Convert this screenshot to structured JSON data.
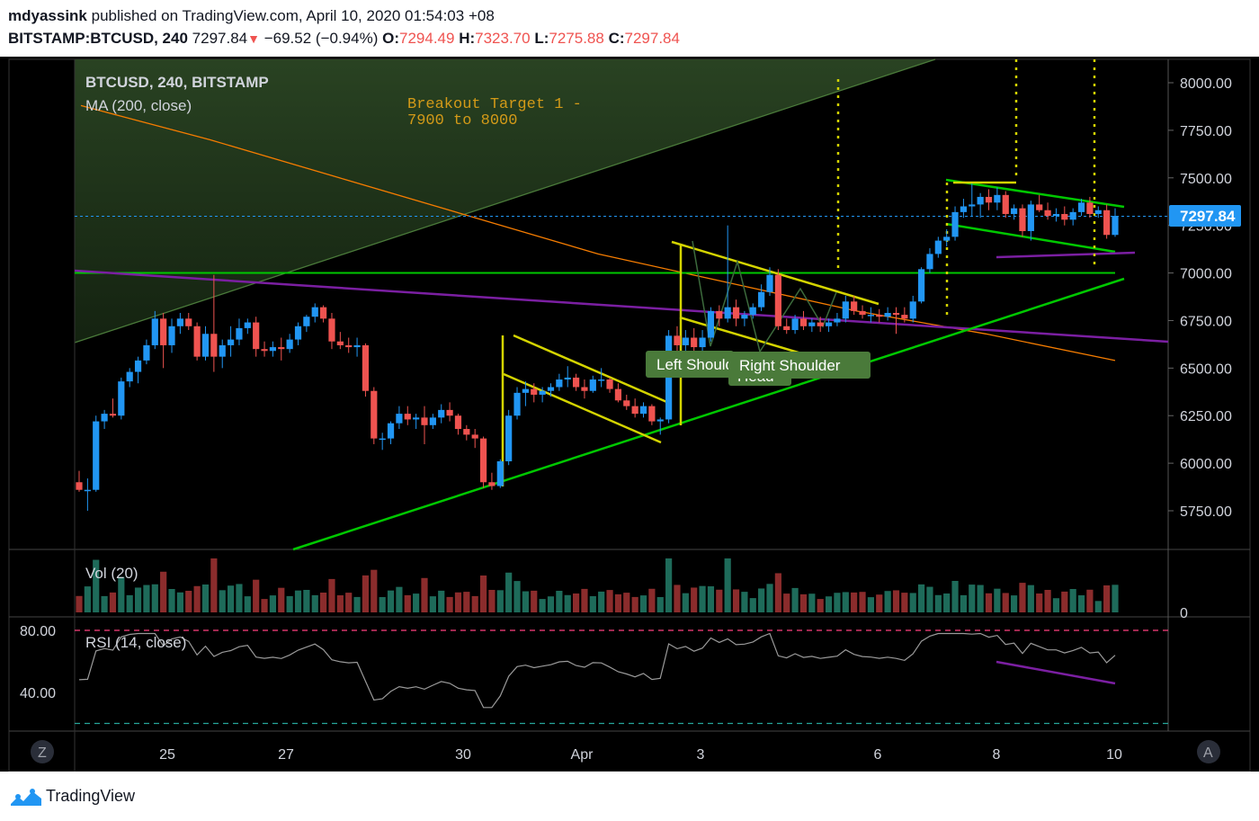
{
  "header": {
    "author": "mdyassink",
    "published_text": "published on TradingView.com, April 10, 2020 01:54:03 +08",
    "symbol": "BITSTAMP:BTCUSD, 240",
    "last": "7297.84",
    "change": "−69.52 (−0.94%)",
    "o_label": "O:",
    "o": "7294.49",
    "h_label": "H:",
    "h": "7323.70",
    "l_label": "L:",
    "l": "7275.88",
    "c_label": "C:",
    "c": "7297.84"
  },
  "legend": {
    "series": "BTCUSD, 240, BITSTAMP",
    "ma": "MA (200, close)",
    "vol": "Vol (20)",
    "rsi": "RSI (14, close)"
  },
  "annotations": {
    "target_line1": "Breakout Target 1 -",
    "target_line2": "7900 to 8000",
    "left_shoulder": "Left Shoulder",
    "right_shoulder": "Right Shoulder",
    "head": "Head"
  },
  "scale_buttons": {
    "z": "Z",
    "a": "A"
  },
  "brand": "TradingView",
  "colors": {
    "up": "#2196f3",
    "down": "#ef5350",
    "ma": "#f57c00",
    "green_line": "#00c800",
    "purple_line": "#7b1fa2",
    "yellow_line": "#d4d400",
    "target_text": "#d39a18",
    "price_tag": "#2196f3",
    "vol_up": "#1e6b5a",
    "vol_down": "#8b2c2c"
  },
  "chart_data": {
    "type": "candlestick",
    "symbol": "BTCUSD",
    "interval": "240",
    "exchange": "BITSTAMP",
    "ylim": [
      5500,
      8100
    ],
    "y_ticks": [
      "8000.00",
      "7750.00",
      "7500.00",
      "7250.00",
      "7000.00",
      "6750.00",
      "6500.00",
      "6250.00",
      "6000.00",
      "5750.00"
    ],
    "current_price": "7297.84",
    "x_ticks": [
      "25",
      "27",
      "30",
      "Apr",
      "3",
      "6",
      "8",
      "10"
    ],
    "candles": [
      {
        "o": 5900,
        "h": 5960,
        "l": 5850,
        "c": 5860
      },
      {
        "o": 5860,
        "h": 5920,
        "l": 5750,
        "c": 5860
      },
      {
        "o": 5860,
        "h": 6250,
        "l": 5850,
        "c": 6220
      },
      {
        "o": 6220,
        "h": 6280,
        "l": 6180,
        "c": 6260
      },
      {
        "o": 6260,
        "h": 6340,
        "l": 6240,
        "c": 6250
      },
      {
        "o": 6250,
        "h": 6450,
        "l": 6230,
        "c": 6430
      },
      {
        "o": 6430,
        "h": 6500,
        "l": 6400,
        "c": 6480
      },
      {
        "o": 6480,
        "h": 6560,
        "l": 6420,
        "c": 6540
      },
      {
        "o": 6540,
        "h": 6650,
        "l": 6520,
        "c": 6620
      },
      {
        "o": 6620,
        "h": 6800,
        "l": 6600,
        "c": 6760
      },
      {
        "o": 6760,
        "h": 6790,
        "l": 6500,
        "c": 6620
      },
      {
        "o": 6620,
        "h": 6760,
        "l": 6580,
        "c": 6720
      },
      {
        "o": 6720,
        "h": 6790,
        "l": 6680,
        "c": 6760
      },
      {
        "o": 6760,
        "h": 6790,
        "l": 6700,
        "c": 6720
      },
      {
        "o": 6720,
        "h": 6740,
        "l": 6540,
        "c": 6560
      },
      {
        "o": 6560,
        "h": 6720,
        "l": 6540,
        "c": 6680
      },
      {
        "o": 6680,
        "h": 6990,
        "l": 6480,
        "c": 6560
      },
      {
        "o": 6560,
        "h": 6650,
        "l": 6500,
        "c": 6620
      },
      {
        "o": 6620,
        "h": 6720,
        "l": 6560,
        "c": 6650
      },
      {
        "o": 6650,
        "h": 6760,
        "l": 6620,
        "c": 6710
      },
      {
        "o": 6710,
        "h": 6760,
        "l": 6680,
        "c": 6740
      },
      {
        "o": 6740,
        "h": 6770,
        "l": 6560,
        "c": 6600
      },
      {
        "o": 6600,
        "h": 6640,
        "l": 6560,
        "c": 6590
      },
      {
        "o": 6590,
        "h": 6640,
        "l": 6560,
        "c": 6610
      },
      {
        "o": 6610,
        "h": 6660,
        "l": 6540,
        "c": 6600
      },
      {
        "o": 6600,
        "h": 6680,
        "l": 6580,
        "c": 6650
      },
      {
        "o": 6650,
        "h": 6740,
        "l": 6620,
        "c": 6720
      },
      {
        "o": 6720,
        "h": 6780,
        "l": 6690,
        "c": 6770
      },
      {
        "o": 6770,
        "h": 6840,
        "l": 6740,
        "c": 6820
      },
      {
        "o": 6820,
        "h": 6830,
        "l": 6740,
        "c": 6760
      },
      {
        "o": 6760,
        "h": 6790,
        "l": 6600,
        "c": 6640
      },
      {
        "o": 6640,
        "h": 6690,
        "l": 6600,
        "c": 6620
      },
      {
        "o": 6620,
        "h": 6660,
        "l": 6580,
        "c": 6610
      },
      {
        "o": 6610,
        "h": 6660,
        "l": 6560,
        "c": 6620
      },
      {
        "o": 6620,
        "h": 6630,
        "l": 6350,
        "c": 6380
      },
      {
        "o": 6380,
        "h": 6400,
        "l": 6100,
        "c": 6130
      },
      {
        "o": 6130,
        "h": 6160,
        "l": 6070,
        "c": 6130
      },
      {
        "o": 6130,
        "h": 6220,
        "l": 6100,
        "c": 6210
      },
      {
        "o": 6210,
        "h": 6300,
        "l": 6180,
        "c": 6260
      },
      {
        "o": 6260,
        "h": 6300,
        "l": 6200,
        "c": 6230
      },
      {
        "o": 6230,
        "h": 6260,
        "l": 6180,
        "c": 6240
      },
      {
        "o": 6240,
        "h": 6300,
        "l": 6100,
        "c": 6200
      },
      {
        "o": 6200,
        "h": 6260,
        "l": 6180,
        "c": 6240
      },
      {
        "o": 6240,
        "h": 6310,
        "l": 6210,
        "c": 6280
      },
      {
        "o": 6280,
        "h": 6320,
        "l": 6220,
        "c": 6250
      },
      {
        "o": 6250,
        "h": 6260,
        "l": 6150,
        "c": 6180
      },
      {
        "o": 6180,
        "h": 6200,
        "l": 6120,
        "c": 6150
      },
      {
        "o": 6150,
        "h": 6180,
        "l": 6080,
        "c": 6130
      },
      {
        "o": 6130,
        "h": 6140,
        "l": 5870,
        "c": 5900
      },
      {
        "o": 5900,
        "h": 5950,
        "l": 5860,
        "c": 5880
      },
      {
        "o": 5880,
        "h": 6020,
        "l": 5870,
        "c": 6010
      },
      {
        "o": 6010,
        "h": 6280,
        "l": 5990,
        "c": 6250
      },
      {
        "o": 6250,
        "h": 6400,
        "l": 6230,
        "c": 6370
      },
      {
        "o": 6370,
        "h": 6430,
        "l": 6300,
        "c": 6390
      },
      {
        "o": 6390,
        "h": 6420,
        "l": 6320,
        "c": 6360
      },
      {
        "o": 6360,
        "h": 6400,
        "l": 6320,
        "c": 6380
      },
      {
        "o": 6380,
        "h": 6420,
        "l": 6350,
        "c": 6400
      },
      {
        "o": 6400,
        "h": 6470,
        "l": 6380,
        "c": 6440
      },
      {
        "o": 6440,
        "h": 6510,
        "l": 6400,
        "c": 6450
      },
      {
        "o": 6450,
        "h": 6470,
        "l": 6380,
        "c": 6400
      },
      {
        "o": 6400,
        "h": 6440,
        "l": 6340,
        "c": 6380
      },
      {
        "o": 6380,
        "h": 6460,
        "l": 6370,
        "c": 6440
      },
      {
        "o": 6440,
        "h": 6500,
        "l": 6400,
        "c": 6440
      },
      {
        "o": 6440,
        "h": 6450,
        "l": 6370,
        "c": 6390
      },
      {
        "o": 6390,
        "h": 6420,
        "l": 6320,
        "c": 6330
      },
      {
        "o": 6330,
        "h": 6360,
        "l": 6280,
        "c": 6300
      },
      {
        "o": 6300,
        "h": 6340,
        "l": 6240,
        "c": 6260
      },
      {
        "o": 6260,
        "h": 6320,
        "l": 6240,
        "c": 6300
      },
      {
        "o": 6300,
        "h": 6310,
        "l": 6200,
        "c": 6220
      },
      {
        "o": 6220,
        "h": 6240,
        "l": 6150,
        "c": 6230
      },
      {
        "o": 6230,
        "h": 6700,
        "l": 6210,
        "c": 6670
      },
      {
        "o": 6670,
        "h": 6720,
        "l": 6580,
        "c": 6620
      },
      {
        "o": 6620,
        "h": 6700,
        "l": 6580,
        "c": 6660
      },
      {
        "o": 6660,
        "h": 6710,
        "l": 6570,
        "c": 6610
      },
      {
        "o": 6610,
        "h": 6700,
        "l": 6580,
        "c": 6660
      },
      {
        "o": 6660,
        "h": 6820,
        "l": 6640,
        "c": 6800
      },
      {
        "o": 6800,
        "h": 6830,
        "l": 6720,
        "c": 6760
      },
      {
        "o": 6760,
        "h": 7250,
        "l": 6740,
        "c": 6820
      },
      {
        "o": 6820,
        "h": 6860,
        "l": 6720,
        "c": 6760
      },
      {
        "o": 6760,
        "h": 6800,
        "l": 6720,
        "c": 6780
      },
      {
        "o": 6780,
        "h": 6840,
        "l": 6760,
        "c": 6820
      },
      {
        "o": 6820,
        "h": 6940,
        "l": 6800,
        "c": 6900
      },
      {
        "o": 6900,
        "h": 7030,
        "l": 6880,
        "c": 6990
      },
      {
        "o": 6990,
        "h": 7020,
        "l": 6700,
        "c": 6720
      },
      {
        "o": 6720,
        "h": 6760,
        "l": 6680,
        "c": 6700
      },
      {
        "o": 6700,
        "h": 6780,
        "l": 6680,
        "c": 6760
      },
      {
        "o": 6760,
        "h": 6800,
        "l": 6700,
        "c": 6720
      },
      {
        "o": 6720,
        "h": 6760,
        "l": 6690,
        "c": 6740
      },
      {
        "o": 6740,
        "h": 6770,
        "l": 6690,
        "c": 6720
      },
      {
        "o": 6720,
        "h": 6760,
        "l": 6690,
        "c": 6740
      },
      {
        "o": 6740,
        "h": 6790,
        "l": 6720,
        "c": 6760
      },
      {
        "o": 6760,
        "h": 6880,
        "l": 6740,
        "c": 6850
      },
      {
        "o": 6850,
        "h": 6880,
        "l": 6780,
        "c": 6800
      },
      {
        "o": 6800,
        "h": 6830,
        "l": 6760,
        "c": 6780
      },
      {
        "o": 6780,
        "h": 6820,
        "l": 6740,
        "c": 6780
      },
      {
        "o": 6780,
        "h": 6810,
        "l": 6740,
        "c": 6770
      },
      {
        "o": 6770,
        "h": 6820,
        "l": 6750,
        "c": 6790
      },
      {
        "o": 6790,
        "h": 6820,
        "l": 6680,
        "c": 6780
      },
      {
        "o": 6780,
        "h": 6820,
        "l": 6740,
        "c": 6760
      },
      {
        "o": 6760,
        "h": 6880,
        "l": 6740,
        "c": 6850
      },
      {
        "o": 6850,
        "h": 7030,
        "l": 6840,
        "c": 7020
      },
      {
        "o": 7020,
        "h": 7130,
        "l": 7000,
        "c": 7100
      },
      {
        "o": 7100,
        "h": 7190,
        "l": 7080,
        "c": 7170
      },
      {
        "o": 7170,
        "h": 7230,
        "l": 7140,
        "c": 7190
      },
      {
        "o": 7190,
        "h": 7350,
        "l": 7170,
        "c": 7320
      },
      {
        "o": 7320,
        "h": 7390,
        "l": 7290,
        "c": 7350
      },
      {
        "o": 7350,
        "h": 7470,
        "l": 7300,
        "c": 7360
      },
      {
        "o": 7360,
        "h": 7420,
        "l": 7290,
        "c": 7400
      },
      {
        "o": 7400,
        "h": 7440,
        "l": 7330,
        "c": 7370
      },
      {
        "o": 7370,
        "h": 7450,
        "l": 7330,
        "c": 7410
      },
      {
        "o": 7410,
        "h": 7430,
        "l": 7290,
        "c": 7310
      },
      {
        "o": 7310,
        "h": 7360,
        "l": 7280,
        "c": 7340
      },
      {
        "o": 7340,
        "h": 7360,
        "l": 7190,
        "c": 7220
      },
      {
        "o": 7220,
        "h": 7380,
        "l": 7170,
        "c": 7360
      },
      {
        "o": 7360,
        "h": 7410,
        "l": 7320,
        "c": 7330
      },
      {
        "o": 7330,
        "h": 7370,
        "l": 7280,
        "c": 7300
      },
      {
        "o": 7300,
        "h": 7340,
        "l": 7270,
        "c": 7310
      },
      {
        "o": 7310,
        "h": 7350,
        "l": 7250,
        "c": 7280
      },
      {
        "o": 7280,
        "h": 7340,
        "l": 7250,
        "c": 7320
      },
      {
        "o": 7320,
        "h": 7390,
        "l": 7300,
        "c": 7370
      },
      {
        "o": 7370,
        "h": 7400,
        "l": 7290,
        "c": 7310
      },
      {
        "o": 7310,
        "h": 7350,
        "l": 7290,
        "c": 7330
      },
      {
        "o": 7330,
        "h": 7360,
        "l": 7180,
        "c": 7200
      },
      {
        "o": 7200,
        "h": 7340,
        "l": 7190,
        "c": 7300
      }
    ],
    "volume_ylim": [
      0,
      100
    ],
    "rsi_ylim": [
      20,
      85
    ],
    "rsi_levels": [
      80,
      30
    ],
    "rsi_ticks": [
      "80.00",
      "40.00"
    ],
    "vol_ticks": [
      "0"
    ],
    "drawings": {
      "green_horizontal": 7000,
      "ma_200_values": [
        7880,
        7700,
        7500,
        7300,
        7100,
        6950,
        6800,
        6680,
        6540
      ]
    }
  }
}
